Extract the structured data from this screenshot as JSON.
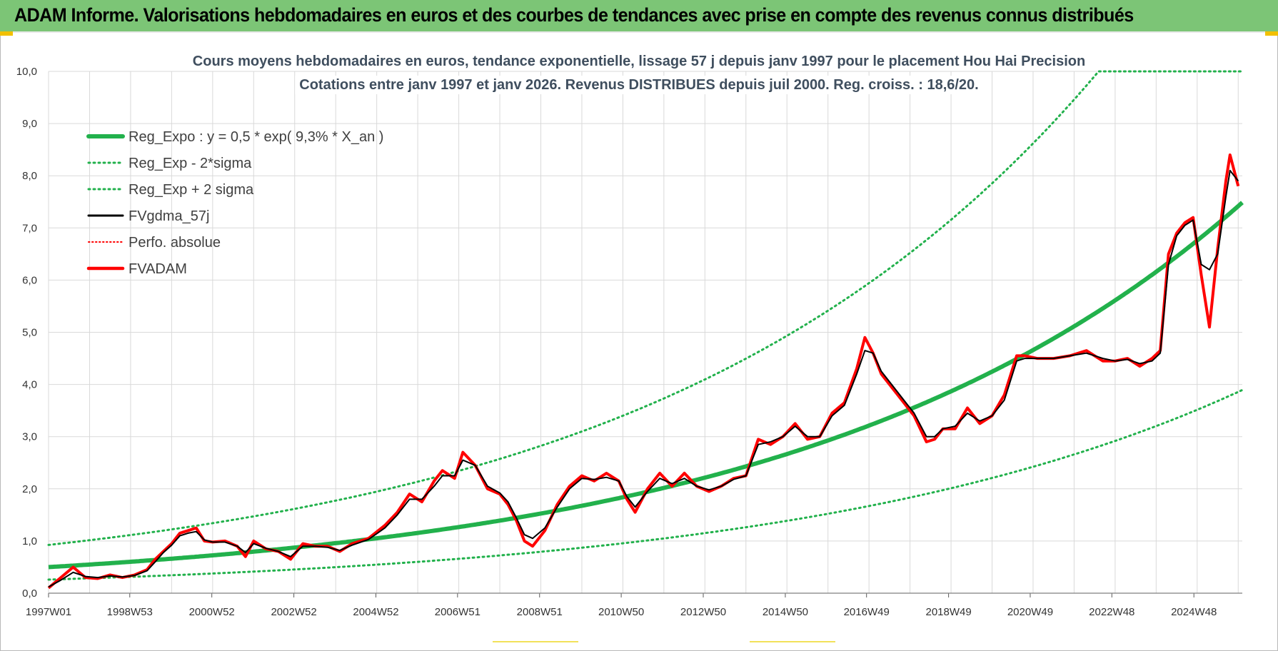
{
  "banner": {
    "title": "ADAM Informe. Valorisations hebdomadaires en euros et des courbes de tendances avec prise en compte des revenus connus distribués"
  },
  "colors": {
    "banner_bg": "#7cc576",
    "trend_green": "#22b14c",
    "smooth_black": "#000000",
    "price_red": "#ff0000",
    "grid": "#d9d9d9"
  },
  "chart_data": {
    "type": "line",
    "title": [
      "Cours moyens hebdomadaires en euros, tendance exponentielle, lissage 57 j depuis janv 1997 pour le placement Hou Hai Precision",
      "Cotations entre janv 1997 et janv 2026. Revenus DISTRIBUES depuis juil 2000. Reg. croiss. : 18,6/20."
    ],
    "xlabel": "",
    "ylabel": "",
    "xlim": [
      1997.0,
      2026.1
    ],
    "ylim": [
      0,
      10
    ],
    "y_ticks": [
      0,
      1,
      2,
      3,
      4,
      5,
      6,
      7,
      8,
      9,
      10
    ],
    "y_tick_labels": [
      "0,0",
      "1,0",
      "2,0",
      "3,0",
      "4,0",
      "5,0",
      "6,0",
      "7,0",
      "8,0",
      "9,0",
      "10,0"
    ],
    "x_ticks": [
      1997.0,
      1998.98,
      2000.98,
      2002.98,
      2004.98,
      2006.97,
      2008.97,
      2010.96,
      2012.96,
      2014.96,
      2016.94,
      2018.94,
      2020.93,
      2022.92,
      2024.92
    ],
    "x_tick_labels": [
      "1997W01",
      "1998W53",
      "2000W52",
      "2002W52",
      "2004W52",
      "2006W51",
      "2008W51",
      "2010W50",
      "2012W50",
      "2014W50",
      "2016W49",
      "2018W49",
      "2020W49",
      "2022W48",
      "2024W48"
    ],
    "grid": true,
    "legend_position": "top-left",
    "legend": [
      {
        "label": "Reg_Expo : y = 0,5 * exp( 9,3% *  X_an )",
        "style": "solid-thick",
        "color": "#22b14c"
      },
      {
        "label": "Reg_Exp - 2*sigma",
        "style": "dotted",
        "color": "#22b14c"
      },
      {
        "label": "Reg_Exp + 2 sigma",
        "style": "dotted",
        "color": "#22b14c"
      },
      {
        "label": "FVgdma_57j",
        "style": "solid-thin",
        "color": "#000000"
      },
      {
        "label": "Perfo. absolue",
        "style": "dotted-thin",
        "color": "#ff0000"
      },
      {
        "label": "FVADAM",
        "style": "solid-medium",
        "color": "#ff0000"
      }
    ],
    "regression": {
      "a": 0.5,
      "rate": 0.093,
      "x0": 1997.0,
      "lower_factor": 0.52,
      "upper_factor": 1.85,
      "cap": 10
    },
    "series": [
      {
        "name": "FVADAM",
        "x": [
          1997.0,
          1997.3,
          1997.6,
          1997.9,
          1998.2,
          1998.5,
          1998.8,
          1999.1,
          1999.4,
          1999.6,
          1999.8,
          2000.0,
          2000.2,
          2000.4,
          2000.6,
          2000.8,
          2001.0,
          2001.3,
          2001.6,
          2001.8,
          2002.0,
          2002.3,
          2002.6,
          2002.9,
          2003.2,
          2003.5,
          2003.8,
          2004.1,
          2004.4,
          2004.8,
          2005.2,
          2005.5,
          2005.8,
          2006.1,
          2006.4,
          2006.6,
          2006.9,
          2007.1,
          2007.4,
          2007.7,
          2008.0,
          2008.2,
          2008.4,
          2008.6,
          2008.8,
          2009.1,
          2009.4,
          2009.7,
          2010.0,
          2010.3,
          2010.6,
          2010.9,
          2011.1,
          2011.3,
          2011.6,
          2011.9,
          2012.2,
          2012.5,
          2012.8,
          2013.1,
          2013.4,
          2013.7,
          2014.0,
          2014.3,
          2014.6,
          2014.9,
          2015.2,
          2015.5,
          2015.8,
          2016.1,
          2016.4,
          2016.7,
          2016.9,
          2017.1,
          2017.3,
          2017.5,
          2017.8,
          2018.1,
          2018.4,
          2018.6,
          2018.8,
          2019.1,
          2019.4,
          2019.7,
          2020.0,
          2020.3,
          2020.6,
          2020.8,
          2021.1,
          2021.5,
          2021.9,
          2022.3,
          2022.7,
          2023.0,
          2023.3,
          2023.6,
          2023.9,
          2024.1,
          2024.3,
          2024.5,
          2024.7,
          2024.9,
          2025.1,
          2025.3,
          2025.5,
          2025.7,
          2025.8,
          2026.0
        ],
        "values": [
          0.1,
          0.3,
          0.5,
          0.3,
          0.28,
          0.35,
          0.3,
          0.35,
          0.45,
          0.65,
          0.8,
          0.95,
          1.15,
          1.2,
          1.25,
          1.0,
          0.98,
          1.0,
          0.9,
          0.7,
          1.0,
          0.85,
          0.8,
          0.65,
          0.95,
          0.9,
          0.9,
          0.8,
          0.95,
          1.05,
          1.3,
          1.55,
          1.9,
          1.75,
          2.15,
          2.35,
          2.2,
          2.7,
          2.45,
          2.0,
          1.9,
          1.7,
          1.4,
          1.0,
          0.9,
          1.2,
          1.7,
          2.05,
          2.25,
          2.15,
          2.3,
          2.15,
          1.8,
          1.55,
          2.0,
          2.3,
          2.05,
          2.3,
          2.05,
          1.95,
          2.05,
          2.2,
          2.25,
          2.95,
          2.85,
          3.0,
          3.25,
          2.95,
          3.0,
          3.45,
          3.65,
          4.3,
          4.9,
          4.6,
          4.2,
          4.0,
          3.7,
          3.4,
          2.9,
          2.95,
          3.15,
          3.15,
          3.55,
          3.25,
          3.4,
          3.8,
          4.55,
          4.55,
          4.5,
          4.5,
          4.55,
          4.65,
          4.45,
          4.45,
          4.5,
          4.35,
          4.5,
          4.65,
          6.5,
          6.9,
          7.1,
          7.2,
          6.1,
          5.1,
          6.6,
          7.9,
          8.4,
          7.8
        ]
      },
      {
        "name": "FVgdma_57j",
        "x": [
          1997.0,
          1997.3,
          1997.6,
          1997.9,
          1998.2,
          1998.5,
          1998.8,
          1999.1,
          1999.4,
          1999.6,
          1999.8,
          2000.0,
          2000.2,
          2000.4,
          2000.6,
          2000.8,
          2001.0,
          2001.3,
          2001.6,
          2001.8,
          2002.0,
          2002.3,
          2002.6,
          2002.9,
          2003.2,
          2003.5,
          2003.8,
          2004.1,
          2004.4,
          2004.8,
          2005.2,
          2005.5,
          2005.8,
          2006.1,
          2006.4,
          2006.6,
          2006.9,
          2007.1,
          2007.4,
          2007.7,
          2008.0,
          2008.2,
          2008.4,
          2008.6,
          2008.8,
          2009.1,
          2009.4,
          2009.7,
          2010.0,
          2010.3,
          2010.6,
          2010.9,
          2011.1,
          2011.3,
          2011.6,
          2011.9,
          2012.2,
          2012.5,
          2012.8,
          2013.1,
          2013.4,
          2013.7,
          2014.0,
          2014.3,
          2014.6,
          2014.9,
          2015.2,
          2015.5,
          2015.8,
          2016.1,
          2016.4,
          2016.7,
          2016.9,
          2017.1,
          2017.3,
          2017.5,
          2017.8,
          2018.1,
          2018.4,
          2018.6,
          2018.8,
          2019.1,
          2019.4,
          2019.7,
          2020.0,
          2020.3,
          2020.6,
          2020.8,
          2021.1,
          2021.5,
          2021.9,
          2022.3,
          2022.7,
          2023.0,
          2023.3,
          2023.6,
          2023.9,
          2024.1,
          2024.3,
          2024.5,
          2024.7,
          2024.9,
          2025.1,
          2025.3,
          2025.5,
          2025.7,
          2025.8,
          2026.0
        ],
        "values": [
          0.12,
          0.25,
          0.4,
          0.32,
          0.3,
          0.33,
          0.31,
          0.34,
          0.43,
          0.6,
          0.78,
          0.92,
          1.1,
          1.15,
          1.18,
          1.02,
          0.98,
          0.98,
          0.9,
          0.78,
          0.95,
          0.86,
          0.8,
          0.7,
          0.9,
          0.9,
          0.88,
          0.82,
          0.92,
          1.03,
          1.25,
          1.5,
          1.8,
          1.8,
          2.05,
          2.25,
          2.25,
          2.55,
          2.45,
          2.05,
          1.92,
          1.75,
          1.45,
          1.12,
          1.05,
          1.25,
          1.65,
          2.0,
          2.2,
          2.18,
          2.22,
          2.15,
          1.85,
          1.65,
          1.95,
          2.2,
          2.1,
          2.2,
          2.05,
          1.98,
          2.05,
          2.18,
          2.25,
          2.85,
          2.9,
          3.0,
          3.2,
          3.0,
          3.0,
          3.4,
          3.6,
          4.2,
          4.65,
          4.6,
          4.25,
          4.05,
          3.75,
          3.45,
          3.0,
          3.0,
          3.15,
          3.2,
          3.45,
          3.3,
          3.4,
          3.7,
          4.45,
          4.5,
          4.5,
          4.5,
          4.55,
          4.6,
          4.5,
          4.45,
          4.48,
          4.4,
          4.45,
          4.6,
          6.3,
          6.85,
          7.05,
          7.15,
          6.3,
          6.2,
          6.5,
          7.6,
          8.1,
          7.9
        ]
      }
    ]
  }
}
